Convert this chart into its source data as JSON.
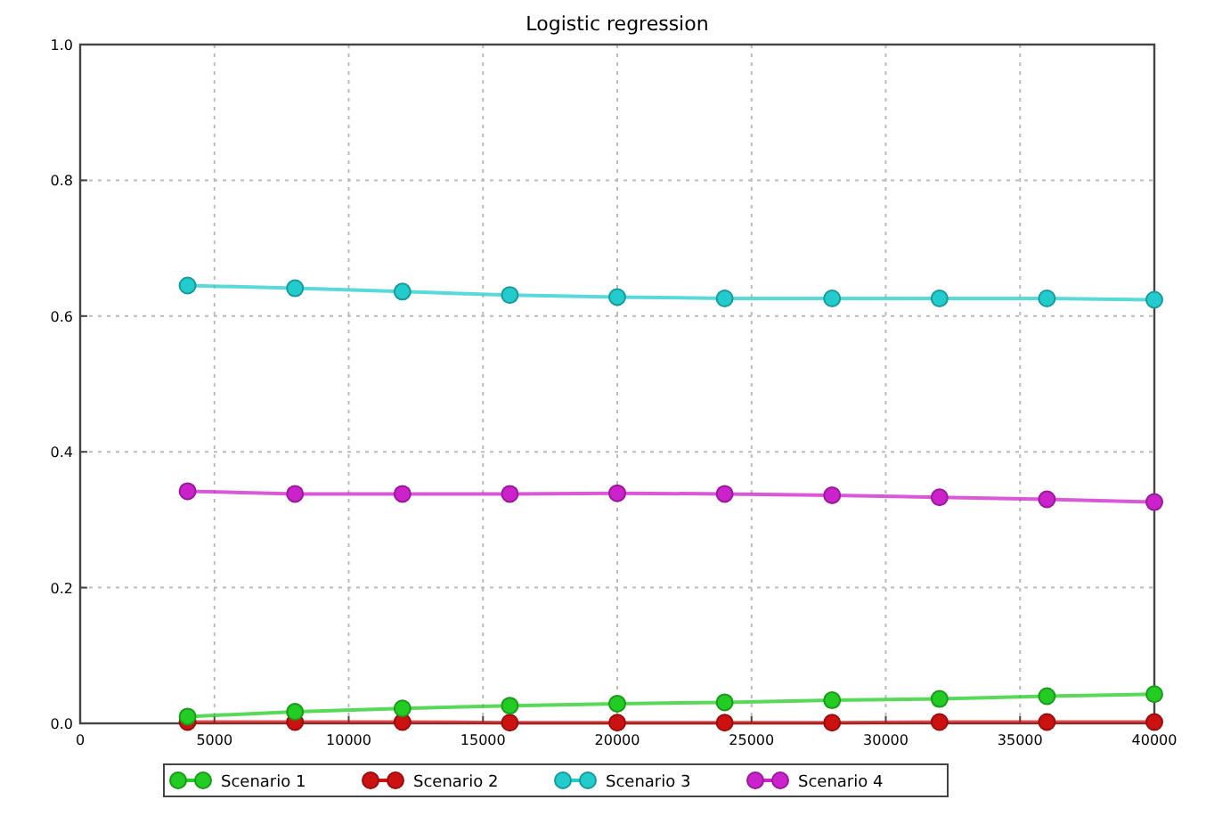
{
  "chart_data": {
    "type": "line",
    "title": "Logistic regression",
    "x": [
      4000,
      8000,
      12000,
      16000,
      20000,
      24000,
      28000,
      32000,
      36000,
      40000
    ],
    "series": [
      {
        "name": "Scenario 1",
        "color": "#22cc22",
        "values": [
          0.01,
          0.017,
          0.022,
          0.026,
          0.029,
          0.031,
          0.034,
          0.036,
          0.04,
          0.043
        ]
      },
      {
        "name": "Scenario 2",
        "color": "#cc1111",
        "values": [
          0.002,
          0.002,
          0.002,
          0.001,
          0.001,
          0.001,
          0.001,
          0.002,
          0.002,
          0.002
        ]
      },
      {
        "name": "Scenario 3",
        "color": "#22cccc",
        "values": [
          0.645,
          0.641,
          0.636,
          0.631,
          0.628,
          0.626,
          0.626,
          0.626,
          0.626,
          0.624
        ]
      },
      {
        "name": "Scenario 4",
        "color": "#cc22cc",
        "values": [
          0.342,
          0.338,
          0.338,
          0.338,
          0.339,
          0.338,
          0.336,
          0.333,
          0.33,
          0.326
        ]
      }
    ],
    "xlim": [
      0,
      40000
    ],
    "xticks": [
      0,
      5000,
      10000,
      15000,
      20000,
      25000,
      30000,
      35000,
      40000
    ],
    "ylim": [
      0,
      1
    ],
    "yticks": [
      {
        "value": 0,
        "label": "0.0"
      },
      {
        "value": 0.2,
        "label": "0.2"
      },
      {
        "value": 0.4,
        "label": "0.4"
      },
      {
        "value": 0.6,
        "label": "0.6"
      },
      {
        "value": 0.8,
        "label": "0.8"
      },
      {
        "value": 1,
        "label": "1.0"
      }
    ],
    "grid": true,
    "legend": "bottom",
    "marker": "circle",
    "line_style": "solid"
  }
}
